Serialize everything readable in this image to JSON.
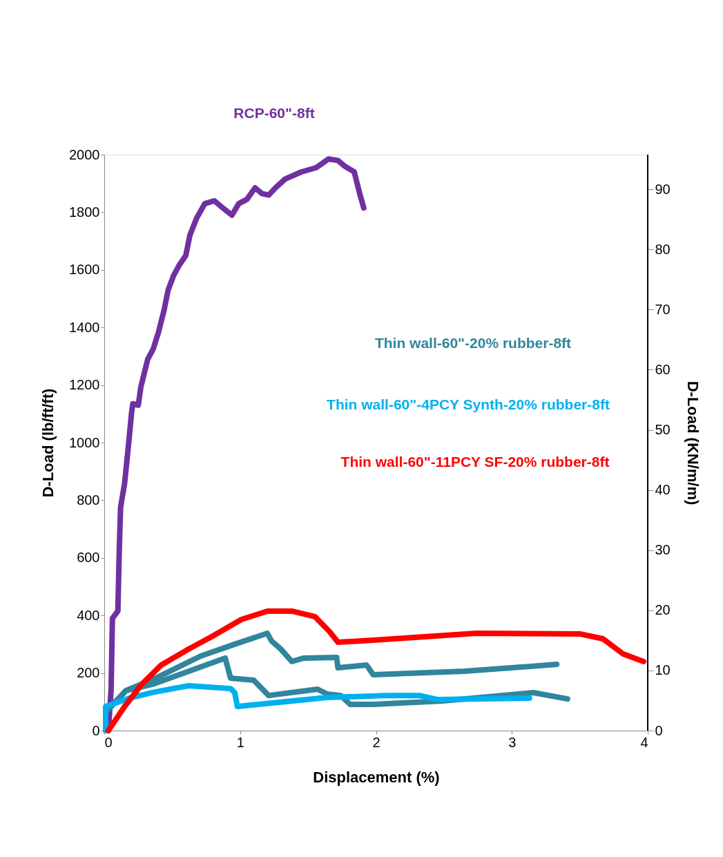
{
  "chart_data": {
    "type": "line",
    "xlabel": "Displacement (%)",
    "ylabel": "D-Load (lb/ft/ft)",
    "y2label": "D-Load (KN/m/m)",
    "xlim": [
      0,
      4
    ],
    "xticks": [
      0,
      1,
      2,
      3,
      4
    ],
    "ylim": [
      0,
      2000
    ],
    "yticks": [
      0,
      200,
      400,
      600,
      800,
      1000,
      1200,
      1400,
      1600,
      1800,
      2000
    ],
    "y2lim": [
      0,
      95.76
    ],
    "y2ticks": [
      0,
      10,
      20,
      30,
      40,
      50,
      60,
      70,
      80,
      90
    ],
    "grid": false,
    "marker": "none",
    "line_style": "solid",
    "series": [
      {
        "name": "RCP-60\"-8ft",
        "color": "#7030a0",
        "x": [
          0.03,
          0.05,
          0.06,
          0.1,
          0.11,
          0.12,
          0.15,
          0.18,
          0.2,
          0.21,
          0.25,
          0.27,
          0.32,
          0.36,
          0.4,
          0.44,
          0.47,
          0.51,
          0.55,
          0.6,
          0.63,
          0.68,
          0.74,
          0.81,
          0.86,
          0.94,
          0.99,
          1.05,
          1.11,
          1.16,
          1.21,
          1.26,
          1.33,
          1.45,
          1.56,
          1.65,
          1.72,
          1.77,
          1.84,
          1.88,
          1.91
        ],
        "values": [
          0,
          140,
          390,
          415,
          620,
          775,
          860,
          1000,
          1100,
          1135,
          1130,
          1195,
          1290,
          1325,
          1385,
          1460,
          1530,
          1580,
          1615,
          1650,
          1720,
          1780,
          1830,
          1840,
          1820,
          1790,
          1830,
          1845,
          1885,
          1865,
          1860,
          1885,
          1915,
          1940,
          1955,
          1985,
          1980,
          1960,
          1940,
          1865,
          1815
        ]
      },
      {
        "name": "Thin wall-60\"-20% rubber-8ft",
        "color": "#31859c",
        "x": [
          0.03,
          0.16,
          0.37,
          0.71,
          0.96,
          1.2,
          1.23,
          1.3,
          1.38,
          1.47,
          1.71,
          1.72,
          1.93,
          1.98,
          2.65,
          3.33
        ],
        "values": [
          74,
          139,
          180,
          259,
          300,
          338,
          312,
          283,
          240,
          252,
          254,
          218,
          228,
          194,
          206,
          230
        ]
      },
      {
        "color": "#31859c",
        "x": [
          0.03,
          0.16,
          0.37,
          0.89,
          0.93,
          1.1,
          1.21,
          1.57,
          1.64,
          1.74,
          1.81,
          1.98,
          2.49,
          3.16,
          3.41
        ],
        "values": [
          74,
          139,
          163,
          252,
          182,
          175,
          122,
          144,
          127,
          122,
          91,
          91,
          103,
          132,
          110
        ]
      },
      {
        "name": "Thin wall-60\"-4PCY Synth-20% rubber-8ft",
        "color": "#00b0f0",
        "x": [
          0.01,
          0.01,
          0.2,
          0.37,
          0.62,
          0.93,
          0.96,
          0.98,
          1.64,
          2.08,
          2.32,
          2.45,
          3.13
        ],
        "values": [
          0,
          84,
          115,
          134,
          156,
          146,
          132,
          84,
          115,
          122,
          122,
          108,
          113
        ]
      },
      {
        "name": "Thin wall-60\"-11PCY SF-20% rubber-8ft",
        "color": "#ff0000",
        "x": [
          0.03,
          0.15,
          0.28,
          0.42,
          0.62,
          0.79,
          1.01,
          1.2,
          1.38,
          1.55,
          1.66,
          1.72,
          1.98,
          2.74,
          3.5,
          3.67,
          3.82,
          3.97
        ],
        "values": [
          0,
          84,
          163,
          228,
          283,
          326,
          386,
          415,
          415,
          396,
          343,
          307,
          314,
          338,
          336,
          319,
          266,
          240
        ]
      }
    ]
  }
}
